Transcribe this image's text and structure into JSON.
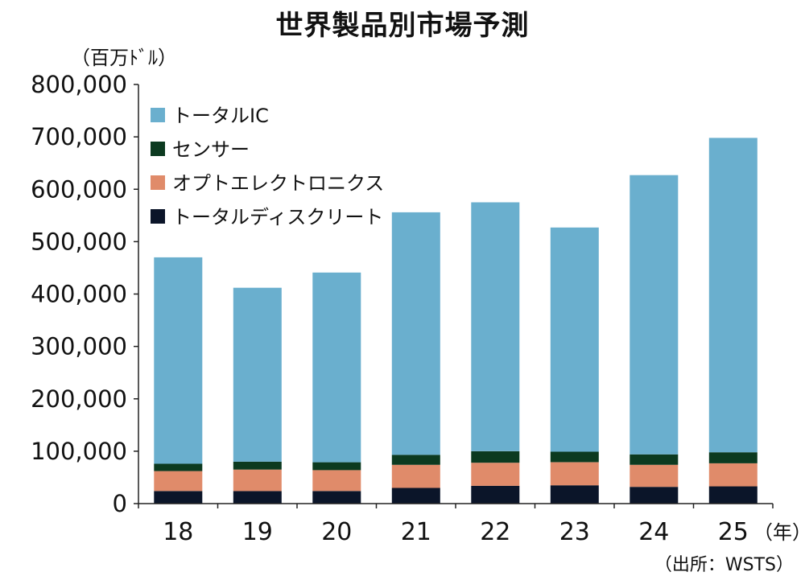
{
  "title": "世界製品別市場予測",
  "y_unit_label": "（百万ﾄﾞﾙ）",
  "x_unit_label": "（年）",
  "source": "（出所：WSTS）",
  "chart_data": {
    "type": "bar",
    "stacked": true,
    "categories": [
      "18",
      "19",
      "20",
      "21",
      "22",
      "23",
      "24",
      "25"
    ],
    "ylim": [
      0,
      800000
    ],
    "yticks": [
      0,
      100000,
      200000,
      300000,
      400000,
      500000,
      600000,
      700000,
      800000
    ],
    "ytick_labels": [
      "0",
      "100,000",
      "200,000",
      "300,000",
      "400,000",
      "500,000",
      "600,000",
      "700,000",
      "800,000"
    ],
    "legend_position": "top-left",
    "grid": false,
    "series": [
      {
        "name": "トータルディスクリート",
        "color": "#0b1529",
        "values": [
          24000,
          24000,
          24000,
          30000,
          34000,
          35000,
          32000,
          33000
        ]
      },
      {
        "name": "オプトエレクトロニクス",
        "color": "#e08b6a",
        "values": [
          38000,
          41000,
          40000,
          44000,
          44000,
          44000,
          42000,
          44000
        ]
      },
      {
        "name": "センサー",
        "color": "#0c3a20",
        "values": [
          14000,
          15000,
          15000,
          19000,
          22000,
          20000,
          20000,
          21000
        ]
      },
      {
        "name": "トータルIC",
        "color": "#6aafce",
        "values": [
          394000,
          332000,
          362000,
          463000,
          475000,
          428000,
          533000,
          600000
        ]
      }
    ],
    "legend_order": [
      "トータルIC",
      "センサー",
      "オプトエレクトロニクス",
      "トータルディスクリート"
    ]
  }
}
